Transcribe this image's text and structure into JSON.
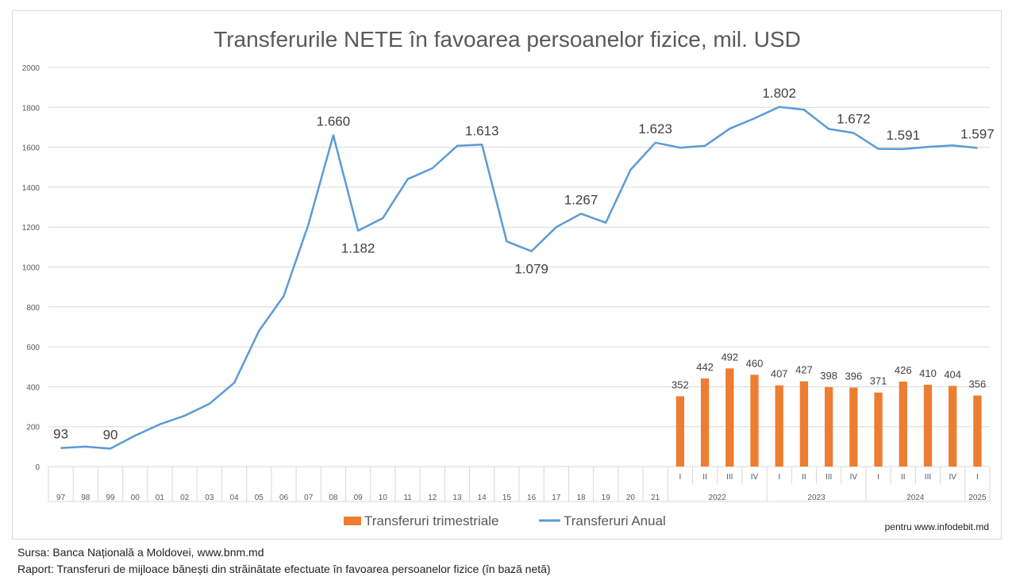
{
  "chart_data": {
    "type": "bar+line",
    "title": "Transferurile NETE în favoarea persoanelor fizice, mil. USD",
    "ylim": [
      0,
      2000
    ],
    "yticks": [
      "0",
      "200",
      "400",
      "600",
      "800",
      "1000",
      "1200",
      "1400",
      "1600",
      "1800",
      "2000"
    ],
    "grid": true,
    "legend_position": "bottom",
    "categories": [
      "97",
      "98",
      "99",
      "00",
      "01",
      "02",
      "03",
      "04",
      "05",
      "06",
      "07",
      "08",
      "09",
      "10",
      "11",
      "12",
      "13",
      "14",
      "15",
      "16",
      "17",
      "18",
      "19",
      "20",
      "21",
      "I",
      "II",
      "III",
      "IV",
      "I",
      "II",
      "III",
      "IV",
      "I",
      "II",
      "III",
      "IV",
      "I"
    ],
    "year_groups": [
      {
        "label": "2022",
        "count": 4
      },
      {
        "label": "2023",
        "count": 4
      },
      {
        "label": "2024",
        "count": 4
      },
      {
        "label": "2025",
        "count": 1
      }
    ],
    "series": [
      {
        "name": "Transferuri trimestriale",
        "type": "bar",
        "color": "#ED7D31",
        "values": [
          null,
          null,
          null,
          null,
          null,
          null,
          null,
          null,
          null,
          null,
          null,
          null,
          null,
          null,
          null,
          null,
          null,
          null,
          null,
          null,
          null,
          null,
          null,
          null,
          null,
          352,
          442,
          492,
          460,
          407,
          427,
          398,
          396,
          371,
          426,
          410,
          404,
          356
        ],
        "labels": [
          null,
          null,
          null,
          null,
          null,
          null,
          null,
          null,
          null,
          null,
          null,
          null,
          null,
          null,
          null,
          null,
          null,
          null,
          null,
          null,
          null,
          null,
          null,
          null,
          null,
          "352",
          "442",
          "492",
          "460",
          "407",
          "427",
          "398",
          "396",
          "371",
          "426",
          "410",
          "404",
          "356"
        ]
      },
      {
        "name": "Transferuri Anual",
        "type": "line",
        "color": "#5B9BD5",
        "values": [
          93,
          100,
          90,
          155,
          212,
          255,
          315,
          420,
          680,
          855,
          1215,
          1660,
          1182,
          1245,
          1440,
          1495,
          1607,
          1613,
          1128,
          1079,
          1200,
          1267,
          1222,
          1487,
          1623,
          1598,
          1607,
          1693,
          1745,
          1802,
          1788,
          1692,
          1672,
          1592,
          1591,
          1602,
          1609,
          1597
        ],
        "labels": [
          "93",
          null,
          "90",
          null,
          null,
          null,
          null,
          null,
          null,
          null,
          null,
          "1.660",
          "1.182",
          null,
          null,
          null,
          null,
          "1.613",
          null,
          "1.079",
          null,
          "1.267",
          null,
          null,
          "1.623",
          null,
          null,
          null,
          null,
          "1.802",
          null,
          null,
          "1.672",
          null,
          "1.591",
          null,
          null,
          "1.597"
        ]
      }
    ]
  },
  "watermark": "pentru www.infodebit.md",
  "footer": {
    "source": "Sursa: Banca Națională a Moldovei, www.bnm.md",
    "report": "Raport: Transferuri de mijloace bănești din străinătate efectuate în favoarea persoanelor fizice (în bază netă)"
  }
}
